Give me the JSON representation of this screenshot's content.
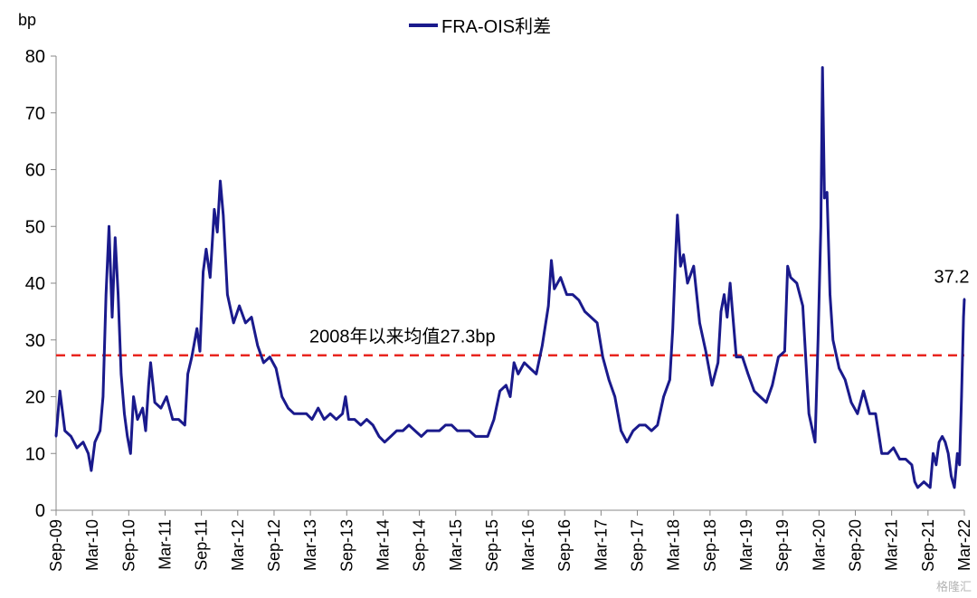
{
  "chart_data": {
    "type": "line",
    "ylabel": "bp",
    "ylim": [
      0,
      80
    ],
    "yticks": [
      0,
      10,
      20,
      30,
      40,
      50,
      60,
      70,
      80
    ],
    "xlim": [
      "2009-09",
      "2022-03"
    ],
    "x_tick_labels": [
      "Sep-09",
      "Mar-10",
      "Sep-10",
      "Mar-11",
      "Sep-11",
      "Mar-12",
      "Sep-12",
      "Mar-13",
      "Sep-13",
      "Mar-14",
      "Sep-14",
      "Mar-15",
      "Sep-15",
      "Mar-16",
      "Sep-16",
      "Mar-17",
      "Sep-17",
      "Mar-18",
      "Sep-18",
      "Mar-19",
      "Sep-19",
      "Mar-20",
      "Sep-20",
      "Mar-21",
      "Sep-21",
      "Mar-22"
    ],
    "grid": false,
    "legend_position": "top-center",
    "series": [
      {
        "name": "FRA-OIS利差",
        "color": "#1a1a8c",
        "points": [
          [
            "2009-09-01",
            13
          ],
          [
            "2009-09-20",
            21
          ],
          [
            "2009-10-15",
            14
          ],
          [
            "2009-11-15",
            13
          ],
          [
            "2009-12-15",
            11
          ],
          [
            "2010-01-15",
            12
          ],
          [
            "2010-02-10",
            10
          ],
          [
            "2010-02-25",
            7
          ],
          [
            "2010-03-15",
            12
          ],
          [
            "2010-04-10",
            14
          ],
          [
            "2010-04-25",
            20
          ],
          [
            "2010-05-10",
            38
          ],
          [
            "2010-05-25",
            50
          ],
          [
            "2010-06-10",
            34
          ],
          [
            "2010-06-25",
            48
          ],
          [
            "2010-07-10",
            38
          ],
          [
            "2010-07-25",
            24
          ],
          [
            "2010-08-10",
            17
          ],
          [
            "2010-08-25",
            13
          ],
          [
            "2010-09-10",
            10
          ],
          [
            "2010-09-25",
            20
          ],
          [
            "2010-10-15",
            16
          ],
          [
            "2010-11-10",
            18
          ],
          [
            "2010-11-25",
            14
          ],
          [
            "2010-12-10",
            22
          ],
          [
            "2010-12-20",
            26
          ],
          [
            "2011-01-10",
            19
          ],
          [
            "2011-02-10",
            18
          ],
          [
            "2011-03-10",
            20
          ],
          [
            "2011-04-10",
            16
          ],
          [
            "2011-05-10",
            16
          ],
          [
            "2011-06-10",
            15
          ],
          [
            "2011-06-25",
            24
          ],
          [
            "2011-07-15",
            27
          ],
          [
            "2011-08-10",
            32
          ],
          [
            "2011-08-25",
            28
          ],
          [
            "2011-09-10",
            42
          ],
          [
            "2011-09-25",
            46
          ],
          [
            "2011-10-15",
            41
          ],
          [
            "2011-11-05",
            53
          ],
          [
            "2011-11-20",
            49
          ],
          [
            "2011-12-05",
            58
          ],
          [
            "2011-12-20",
            52
          ],
          [
            "2012-01-10",
            38
          ],
          [
            "2012-02-10",
            33
          ],
          [
            "2012-03-10",
            36
          ],
          [
            "2012-04-10",
            33
          ],
          [
            "2012-05-10",
            34
          ],
          [
            "2012-06-10",
            29
          ],
          [
            "2012-07-10",
            26
          ],
          [
            "2012-08-10",
            27
          ],
          [
            "2012-09-10",
            25
          ],
          [
            "2012-10-10",
            20
          ],
          [
            "2012-11-10",
            18
          ],
          [
            "2012-12-10",
            17
          ],
          [
            "2013-01-10",
            17
          ],
          [
            "2013-02-10",
            17
          ],
          [
            "2013-03-10",
            16
          ],
          [
            "2013-04-10",
            18
          ],
          [
            "2013-05-10",
            16
          ],
          [
            "2013-06-10",
            17
          ],
          [
            "2013-07-10",
            16
          ],
          [
            "2013-08-10",
            17
          ],
          [
            "2013-08-25",
            20
          ],
          [
            "2013-09-10",
            16
          ],
          [
            "2013-10-10",
            16
          ],
          [
            "2013-11-10",
            15
          ],
          [
            "2013-12-10",
            16
          ],
          [
            "2014-01-10",
            15
          ],
          [
            "2014-02-10",
            13
          ],
          [
            "2014-03-10",
            12
          ],
          [
            "2014-04-10",
            13
          ],
          [
            "2014-05-10",
            14
          ],
          [
            "2014-06-10",
            14
          ],
          [
            "2014-07-10",
            15
          ],
          [
            "2014-08-10",
            14
          ],
          [
            "2014-09-10",
            13
          ],
          [
            "2014-10-10",
            14
          ],
          [
            "2014-11-10",
            14
          ],
          [
            "2014-12-10",
            14
          ],
          [
            "2015-01-10",
            15
          ],
          [
            "2015-02-10",
            15
          ],
          [
            "2015-03-10",
            14
          ],
          [
            "2015-04-10",
            14
          ],
          [
            "2015-05-10",
            14
          ],
          [
            "2015-06-10",
            13
          ],
          [
            "2015-07-10",
            13
          ],
          [
            "2015-08-10",
            13
          ],
          [
            "2015-09-10",
            16
          ],
          [
            "2015-10-10",
            21
          ],
          [
            "2015-11-10",
            22
          ],
          [
            "2015-12-01",
            20
          ],
          [
            "2015-12-20",
            26
          ],
          [
            "2016-01-10",
            24
          ],
          [
            "2016-02-10",
            26
          ],
          [
            "2016-03-10",
            25
          ],
          [
            "2016-04-10",
            24
          ],
          [
            "2016-05-10",
            29
          ],
          [
            "2016-06-10",
            36
          ],
          [
            "2016-06-25",
            44
          ],
          [
            "2016-07-10",
            39
          ],
          [
            "2016-08-10",
            41
          ],
          [
            "2016-09-10",
            38
          ],
          [
            "2016-10-10",
            38
          ],
          [
            "2016-11-10",
            37
          ],
          [
            "2016-12-10",
            35
          ],
          [
            "2017-01-10",
            34
          ],
          [
            "2017-02-10",
            33
          ],
          [
            "2017-03-10",
            27
          ],
          [
            "2017-04-10",
            23
          ],
          [
            "2017-05-10",
            20
          ],
          [
            "2017-06-10",
            14
          ],
          [
            "2017-07-10",
            12
          ],
          [
            "2017-08-10",
            14
          ],
          [
            "2017-09-10",
            15
          ],
          [
            "2017-10-10",
            15
          ],
          [
            "2017-11-10",
            14
          ],
          [
            "2017-12-10",
            15
          ],
          [
            "2018-01-10",
            20
          ],
          [
            "2018-02-10",
            23
          ],
          [
            "2018-02-25",
            32
          ],
          [
            "2018-03-10",
            44
          ],
          [
            "2018-03-20",
            52
          ],
          [
            "2018-04-05",
            43
          ],
          [
            "2018-04-20",
            45
          ],
          [
            "2018-05-10",
            40
          ],
          [
            "2018-06-10",
            43
          ],
          [
            "2018-07-10",
            33
          ],
          [
            "2018-08-10",
            28
          ],
          [
            "2018-09-10",
            22
          ],
          [
            "2018-10-10",
            26
          ],
          [
            "2018-10-25",
            35
          ],
          [
            "2018-11-10",
            38
          ],
          [
            "2018-11-25",
            34
          ],
          [
            "2018-12-10",
            40
          ],
          [
            "2019-01-10",
            27
          ],
          [
            "2019-02-10",
            27
          ],
          [
            "2019-03-10",
            24
          ],
          [
            "2019-04-10",
            21
          ],
          [
            "2019-05-10",
            20
          ],
          [
            "2019-06-10",
            19
          ],
          [
            "2019-07-10",
            22
          ],
          [
            "2019-08-10",
            27
          ],
          [
            "2019-09-10",
            28
          ],
          [
            "2019-09-25",
            43
          ],
          [
            "2019-10-10",
            41
          ],
          [
            "2019-11-10",
            40
          ],
          [
            "2019-12-10",
            36
          ],
          [
            "2020-01-10",
            17
          ],
          [
            "2020-02-10",
            12
          ],
          [
            "2020-02-25",
            30
          ],
          [
            "2020-03-10",
            50
          ],
          [
            "2020-03-18",
            78
          ],
          [
            "2020-03-28",
            55
          ],
          [
            "2020-04-10",
            56
          ],
          [
            "2020-04-25",
            38
          ],
          [
            "2020-05-10",
            30
          ],
          [
            "2020-06-10",
            25
          ],
          [
            "2020-07-10",
            23
          ],
          [
            "2020-08-10",
            19
          ],
          [
            "2020-09-10",
            17
          ],
          [
            "2020-10-10",
            21
          ],
          [
            "2020-11-10",
            17
          ],
          [
            "2020-12-10",
            17
          ],
          [
            "2021-01-10",
            10
          ],
          [
            "2021-02-10",
            10
          ],
          [
            "2021-03-10",
            11
          ],
          [
            "2021-04-10",
            9
          ],
          [
            "2021-05-10",
            9
          ],
          [
            "2021-06-10",
            8
          ],
          [
            "2021-06-25",
            5
          ],
          [
            "2021-07-10",
            4
          ],
          [
            "2021-08-10",
            5
          ],
          [
            "2021-09-10",
            4
          ],
          [
            "2021-09-25",
            10
          ],
          [
            "2021-10-10",
            8
          ],
          [
            "2021-10-25",
            12
          ],
          [
            "2021-11-10",
            13
          ],
          [
            "2021-11-25",
            12
          ],
          [
            "2021-12-10",
            10
          ],
          [
            "2021-12-25",
            6
          ],
          [
            "2022-01-10",
            4
          ],
          [
            "2022-01-25",
            10
          ],
          [
            "2022-02-05",
            8
          ],
          [
            "2022-02-15",
            20
          ],
          [
            "2022-02-25",
            34
          ],
          [
            "2022-03-01",
            37.2
          ]
        ]
      }
    ],
    "reference_line": {
      "value": 27.3,
      "label": "2008年以来均值27.3bp",
      "color": "#e8251f",
      "style": "dashed"
    },
    "end_label": "37.2"
  },
  "watermark": "格隆汇"
}
